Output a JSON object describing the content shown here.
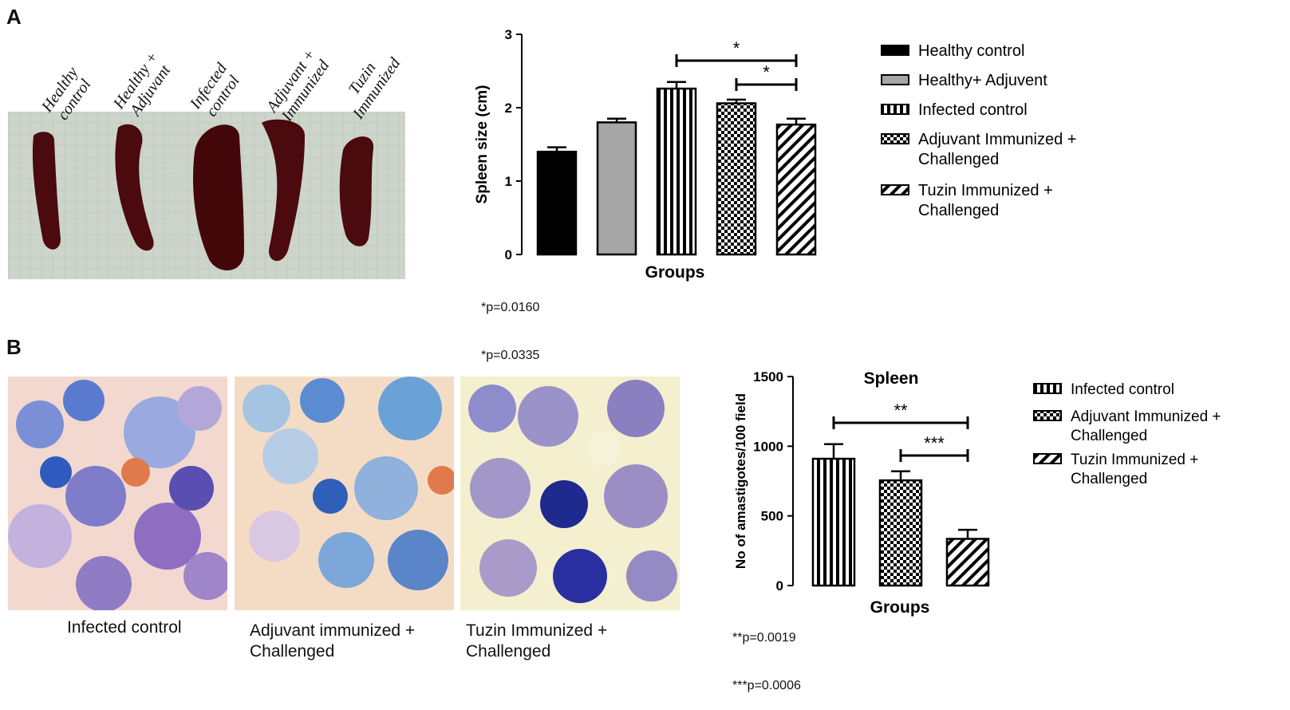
{
  "panels": {
    "a_letter": "A",
    "b_letter": "B"
  },
  "panel_a_photo": {
    "labels": [
      "Healthy\ncontrol",
      "Healthy +\nAdjuvant",
      "Infected\ncontrol",
      "Adjuvant +\nImmunized",
      "Tuzin\nImmunized"
    ]
  },
  "panel_b_micro": {
    "captions": [
      "Infected control",
      "Adjuvant immunized +\nChallenged",
      "Tuzin Immunized +\nChallenged"
    ]
  },
  "colors": {
    "black": "#000000",
    "gray": "#a6a6a6",
    "tissue_a": "#4a0a0e",
    "grid_bg": "#cfd6cc"
  },
  "chart_data": [
    {
      "type": "bar",
      "title": "",
      "xlabel": "Groups",
      "ylabel": "Spleen size (cm)",
      "ylim": [
        0,
        3
      ],
      "yticks": [
        "0",
        "1",
        "2",
        "3"
      ],
      "categories": [
        "Healthy control",
        "Healthy+ Adjuvent",
        "Infected control",
        "Adjuvant Immunized + Challenged",
        "Tuzin Immunized + Challenged"
      ],
      "values": [
        1.4,
        1.8,
        2.26,
        2.06,
        1.77
      ],
      "errors": [
        0.06,
        0.05,
        0.09,
        0.05,
        0.08
      ],
      "patterns": [
        "solid-black",
        "solid-gray",
        "vertical-stripes",
        "checker",
        "diagonal"
      ],
      "significance": [
        {
          "from": 2,
          "to": 4,
          "label": "*"
        },
        {
          "from": 3,
          "to": 4,
          "label": "*"
        }
      ],
      "p_values": [
        "*p=0.0160",
        "*p=0.0335"
      ],
      "legend": [
        "Healthy control",
        "Healthy+ Adjuvent",
        "Infected control",
        "Adjuvant Immunized +\nChallenged",
        "Tuzin Immunized +\nChallenged"
      ],
      "legend_position": "right"
    },
    {
      "type": "bar",
      "title": "Spleen",
      "xlabel": "Groups",
      "ylabel": "No of amastigotes/100 field",
      "ylim": [
        0,
        1500
      ],
      "yticks": [
        "0",
        "500",
        "1000",
        "1500"
      ],
      "categories": [
        "Infected control",
        "Adjuvant Immunized + Challenged",
        "Tuzin Immunized + Challenged"
      ],
      "values": [
        910,
        755,
        335
      ],
      "errors": [
        105,
        65,
        65
      ],
      "patterns": [
        "vertical-stripes",
        "checker",
        "diagonal"
      ],
      "significance": [
        {
          "from": 0,
          "to": 2,
          "label": "**"
        },
        {
          "from": 1,
          "to": 2,
          "label": "***"
        }
      ],
      "p_values": [
        "**p=0.0019",
        "***p=0.0006"
      ],
      "legend": [
        "Infected control",
        "Adjuvant Immunized +\nChallenged",
        "Tuzin Immunized +\nChallenged"
      ],
      "legend_position": "right"
    }
  ]
}
